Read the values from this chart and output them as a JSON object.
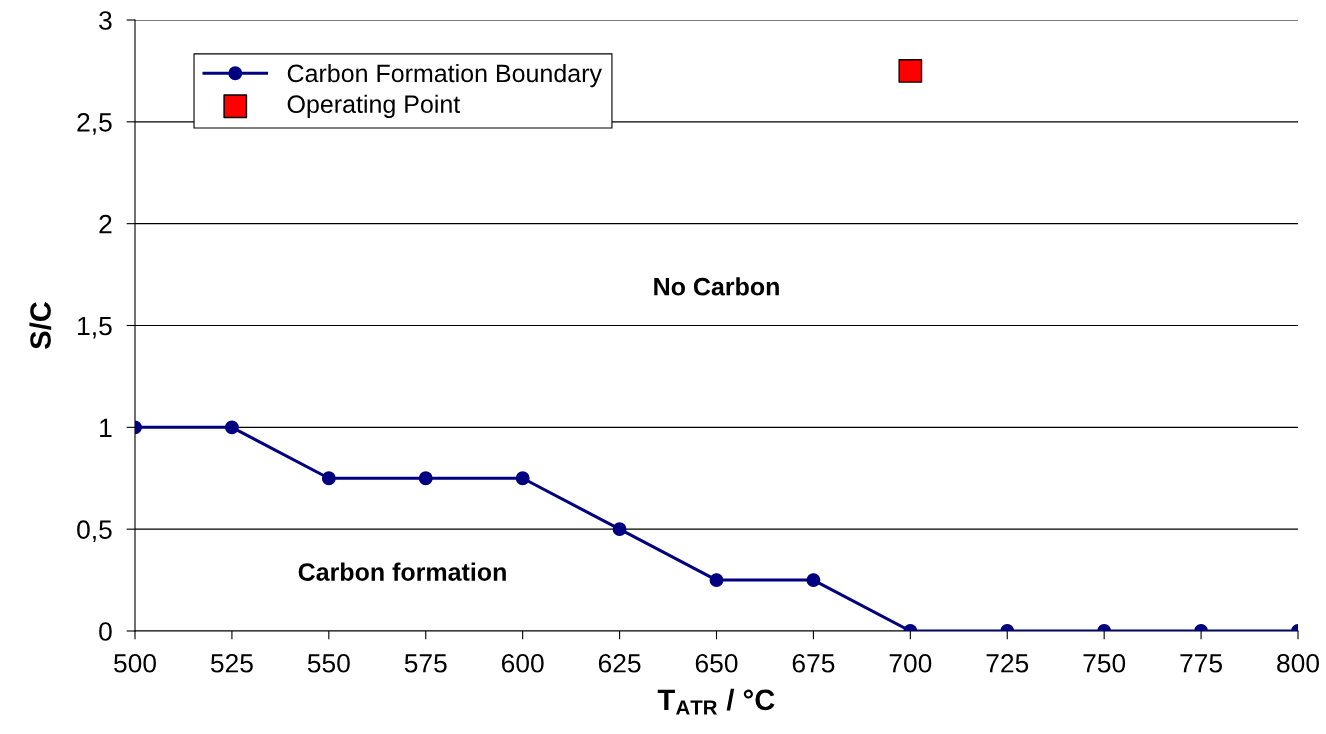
{
  "chart_data": {
    "type": "line",
    "xlabel": "T$_{ATR}$ / °C",
    "ylabel": "S/C",
    "x": [
      500,
      525,
      550,
      575,
      600,
      625,
      650,
      675,
      700,
      725,
      750,
      775,
      800
    ],
    "series": [
      {
        "name": "Carbon Formation Boundary",
        "color": "#000080",
        "marker": "circle",
        "line_style": "solid",
        "values": [
          1,
          1,
          0.75,
          0.75,
          0.75,
          0.5,
          0.25,
          0.25,
          0,
          0,
          0,
          0,
          0
        ]
      },
      {
        "name": "Operating Point",
        "type": "scatter",
        "color": "#ff0000",
        "marker": "square",
        "x": [
          700
        ],
        "values": [
          2.75
        ]
      }
    ],
    "xlim": [
      500,
      800
    ],
    "xticks": [
      500,
      525,
      550,
      575,
      600,
      625,
      650,
      675,
      700,
      725,
      750,
      775,
      800
    ],
    "ylim": [
      0,
      3
    ],
    "yticks": [
      0,
      {
        "value": 0.5,
        "label": "0,5"
      },
      1,
      {
        "value": 1.5,
        "label": "1,5"
      },
      2,
      {
        "value": 2.5,
        "label": "2,5"
      },
      3
    ],
    "grid": "y",
    "legend": "top left",
    "annotations": [
      "No Carbon",
      "Carbon formation"
    ]
  }
}
